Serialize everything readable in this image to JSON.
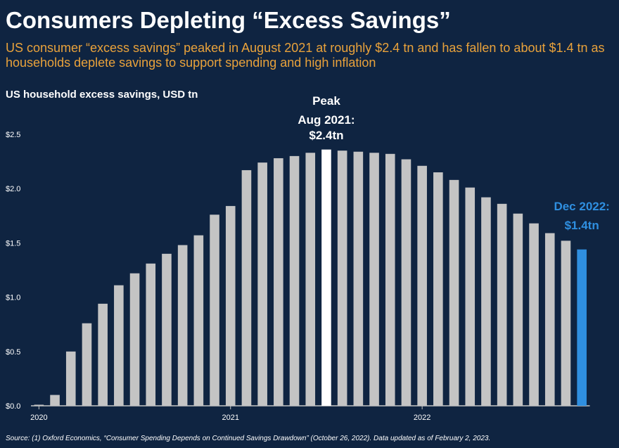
{
  "chart_data": {
    "type": "bar",
    "title": "Consumers Depleting “Excess Savings”",
    "subtitle": "US consumer “excess savings” peaked in August 2021 at roughly $2.4 tn and has fallen to about $1.4 tn as households deplete savings to support spending and high inflation",
    "y_axis_label": "US household excess savings, USD tn",
    "categories": [
      "2020",
      null,
      null,
      null,
      null,
      null,
      null,
      null,
      null,
      null,
      null,
      null,
      "2021",
      null,
      null,
      null,
      null,
      null,
      null,
      null,
      null,
      null,
      null,
      null,
      "2022",
      null,
      null,
      null,
      null,
      null,
      null,
      null,
      null,
      null,
      null
    ],
    "values": [
      0.01,
      0.1,
      0.5,
      0.76,
      0.94,
      1.11,
      1.22,
      1.31,
      1.4,
      1.48,
      1.57,
      1.76,
      1.84,
      2.17,
      2.24,
      2.28,
      2.3,
      2.33,
      2.36,
      2.35,
      2.34,
      2.33,
      2.32,
      2.27,
      2.21,
      2.15,
      2.08,
      2.01,
      1.92,
      1.86,
      1.77,
      1.68,
      1.59,
      1.52,
      1.44
    ],
    "colors": [
      "#c4c4c4",
      "#c4c4c4",
      "#c4c4c4",
      "#c4c4c4",
      "#c4c4c4",
      "#c4c4c4",
      "#c4c4c4",
      "#c4c4c4",
      "#c4c4c4",
      "#c4c4c4",
      "#c4c4c4",
      "#c4c4c4",
      "#c4c4c4",
      "#c4c4c4",
      "#c4c4c4",
      "#c4c4c4",
      "#c4c4c4",
      "#c4c4c4",
      "#ffffff",
      "#c4c4c4",
      "#c4c4c4",
      "#c4c4c4",
      "#c4c4c4",
      "#c4c4c4",
      "#c4c4c4",
      "#c4c4c4",
      "#c4c4c4",
      "#c4c4c4",
      "#c4c4c4",
      "#c4c4c4",
      "#c4c4c4",
      "#c4c4c4",
      "#c4c4c4",
      "#c4c4c4",
      "#2f8fe0"
    ],
    "ylim": [
      0,
      2.5
    ],
    "yticks": [
      {
        "value": 0,
        "label": "$0.0"
      },
      {
        "value": 0.5,
        "label": "$0.5"
      },
      {
        "value": 1,
        "label": "$1.0"
      },
      {
        "value": 1.5,
        "label": "$1.5"
      },
      {
        "value": 2,
        "label": "$2.0"
      },
      {
        "value": 2.5,
        "label": "$2.5"
      }
    ],
    "annotations": {
      "peak": [
        "Peak",
        "Aug 2021:",
        "$2.4tn"
      ],
      "latest": [
        "Dec 2022:",
        "$1.4tn"
      ]
    },
    "source": "Source:  (1) Oxford Economics, “Consumer Spending Depends on Continued Savings Drawdown” (October 26, 2022). Data updated as of February 2, 2023."
  }
}
